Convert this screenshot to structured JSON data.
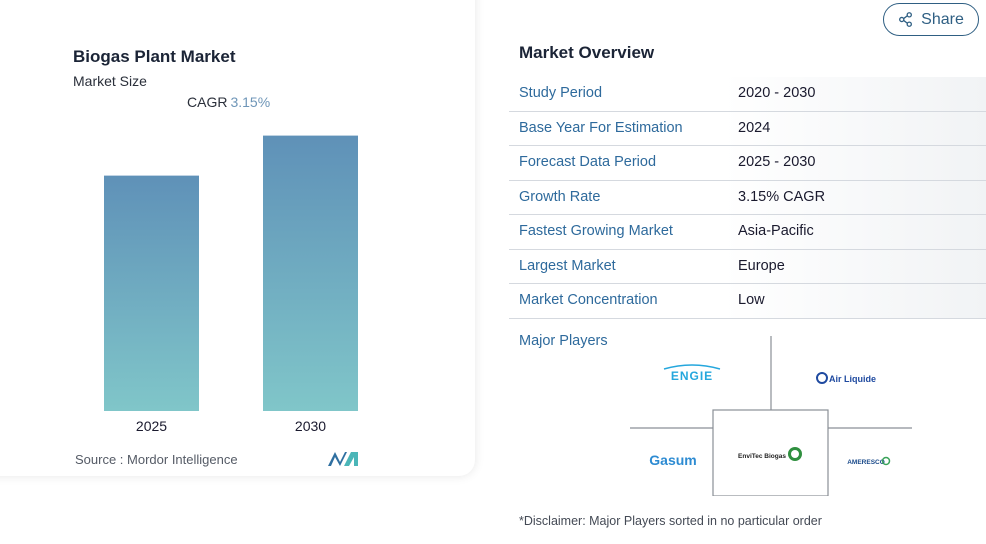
{
  "chart_card": {
    "title": "Biogas Plant Market",
    "subtitle": "Market Size",
    "cagr_label": "CAGR",
    "cagr_value": "3.15%",
    "source": "Source :  Mordor Intelligence"
  },
  "chart_data": {
    "type": "bar",
    "title": "Biogas Plant Market",
    "categories": [
      "2025",
      "2030"
    ],
    "values": [
      1.0,
      1.17
    ],
    "ylim": [
      0,
      1.3
    ],
    "grid": false,
    "colors": {
      "top": "#5f91b8",
      "bottom": "#80c6c9"
    }
  },
  "share": {
    "label": "Share",
    "icon": "share-icon"
  },
  "overview": {
    "title": "Market Overview",
    "rows": [
      {
        "label": "Study Period",
        "value": "2020 - 2030"
      },
      {
        "label": "Base Year For Estimation",
        "value": "2024"
      },
      {
        "label": "Forecast Data Period",
        "value": "2025 - 2030"
      },
      {
        "label": "Growth Rate",
        "value": "3.15% CAGR"
      },
      {
        "label": "Fastest Growing Market",
        "value": "Asia-Pacific"
      },
      {
        "label": "Largest Market",
        "value": "Europe"
      },
      {
        "label": "Market Concentration",
        "value": "Low"
      }
    ]
  },
  "major_players": {
    "title": "Major Players",
    "logos": {
      "engie": "ENGIE",
      "airliquide": "Air Liquide",
      "gasum": "Gasum",
      "envitec": "EnviTec Biogas",
      "ameresco": "AMERESCO"
    }
  },
  "disclaimer": "*Disclaimer: Major Players sorted in no particular order",
  "colors": {
    "accent": "#2e6a9c",
    "bar_top": "#5f91b8",
    "bar_bottom": "#80c6c9"
  }
}
